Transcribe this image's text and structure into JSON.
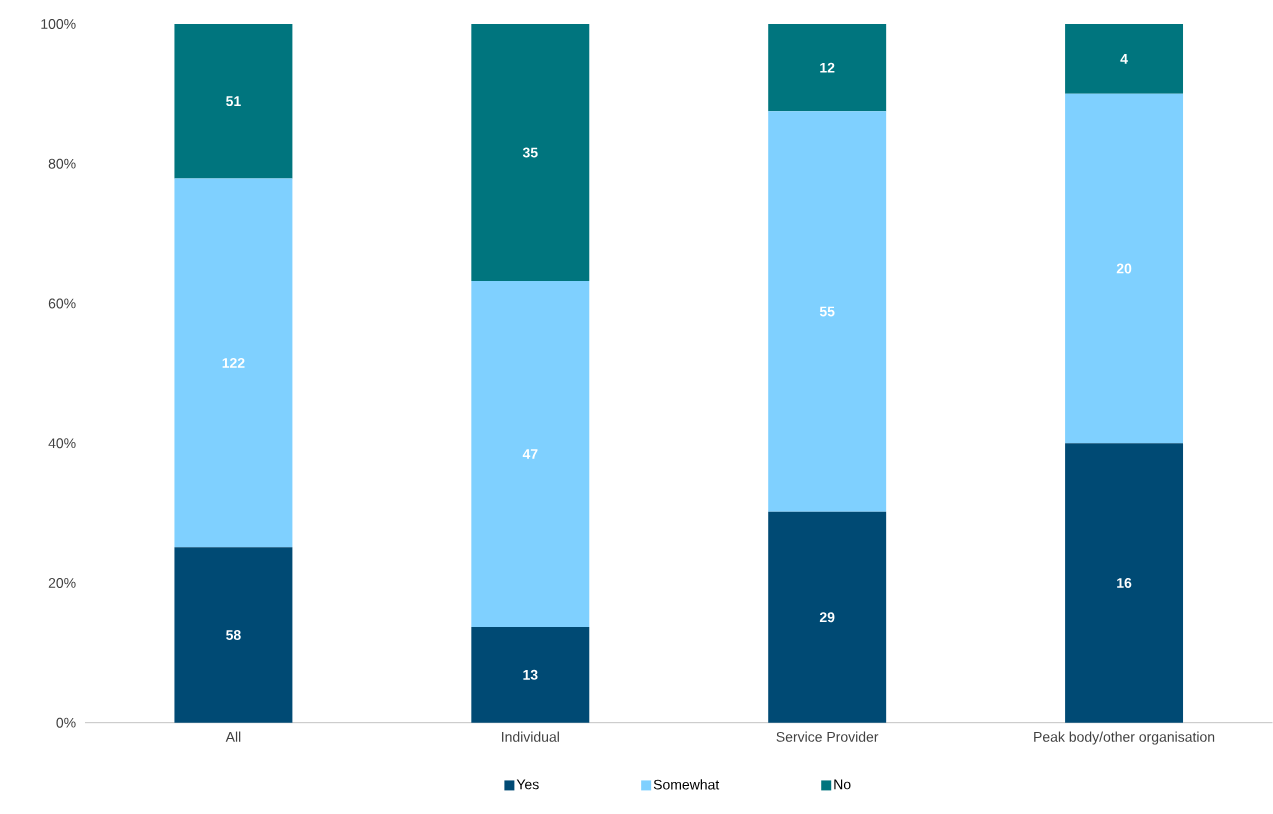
{
  "chart_data": {
    "type": "bar",
    "stacked": true,
    "categories": [
      "All",
      "Individual",
      "Service Provider",
      "Peak body/other organisation"
    ],
    "series": [
      {
        "name": "Yes",
        "color": "#004a74",
        "values": [
          25.1,
          13.7,
          30.2,
          40.0
        ]
      },
      {
        "name": "Somewhat",
        "color": "#7fd0ff",
        "values": [
          52.8,
          49.5,
          57.3,
          50.0
        ]
      },
      {
        "name": "No",
        "color": "#00757e",
        "values": [
          22.1,
          36.8,
          12.5,
          10.0
        ]
      }
    ],
    "annotations": [
      "58",
      "13",
      "29",
      "16",
      "122",
      "47",
      "55",
      "20",
      "51",
      "35",
      "12",
      "4"
    ],
    "ylim": [
      0,
      100
    ],
    "yticks": [
      {
        "value": 0,
        "label": "0%"
      },
      {
        "value": 20,
        "label": "20%"
      },
      {
        "value": 40,
        "label": "40%"
      },
      {
        "value": 60,
        "label": "60%"
      },
      {
        "value": 80,
        "label": "80%"
      },
      {
        "value": 100,
        "label": "100%"
      }
    ],
    "grid": false,
    "legend": "bottom"
  }
}
